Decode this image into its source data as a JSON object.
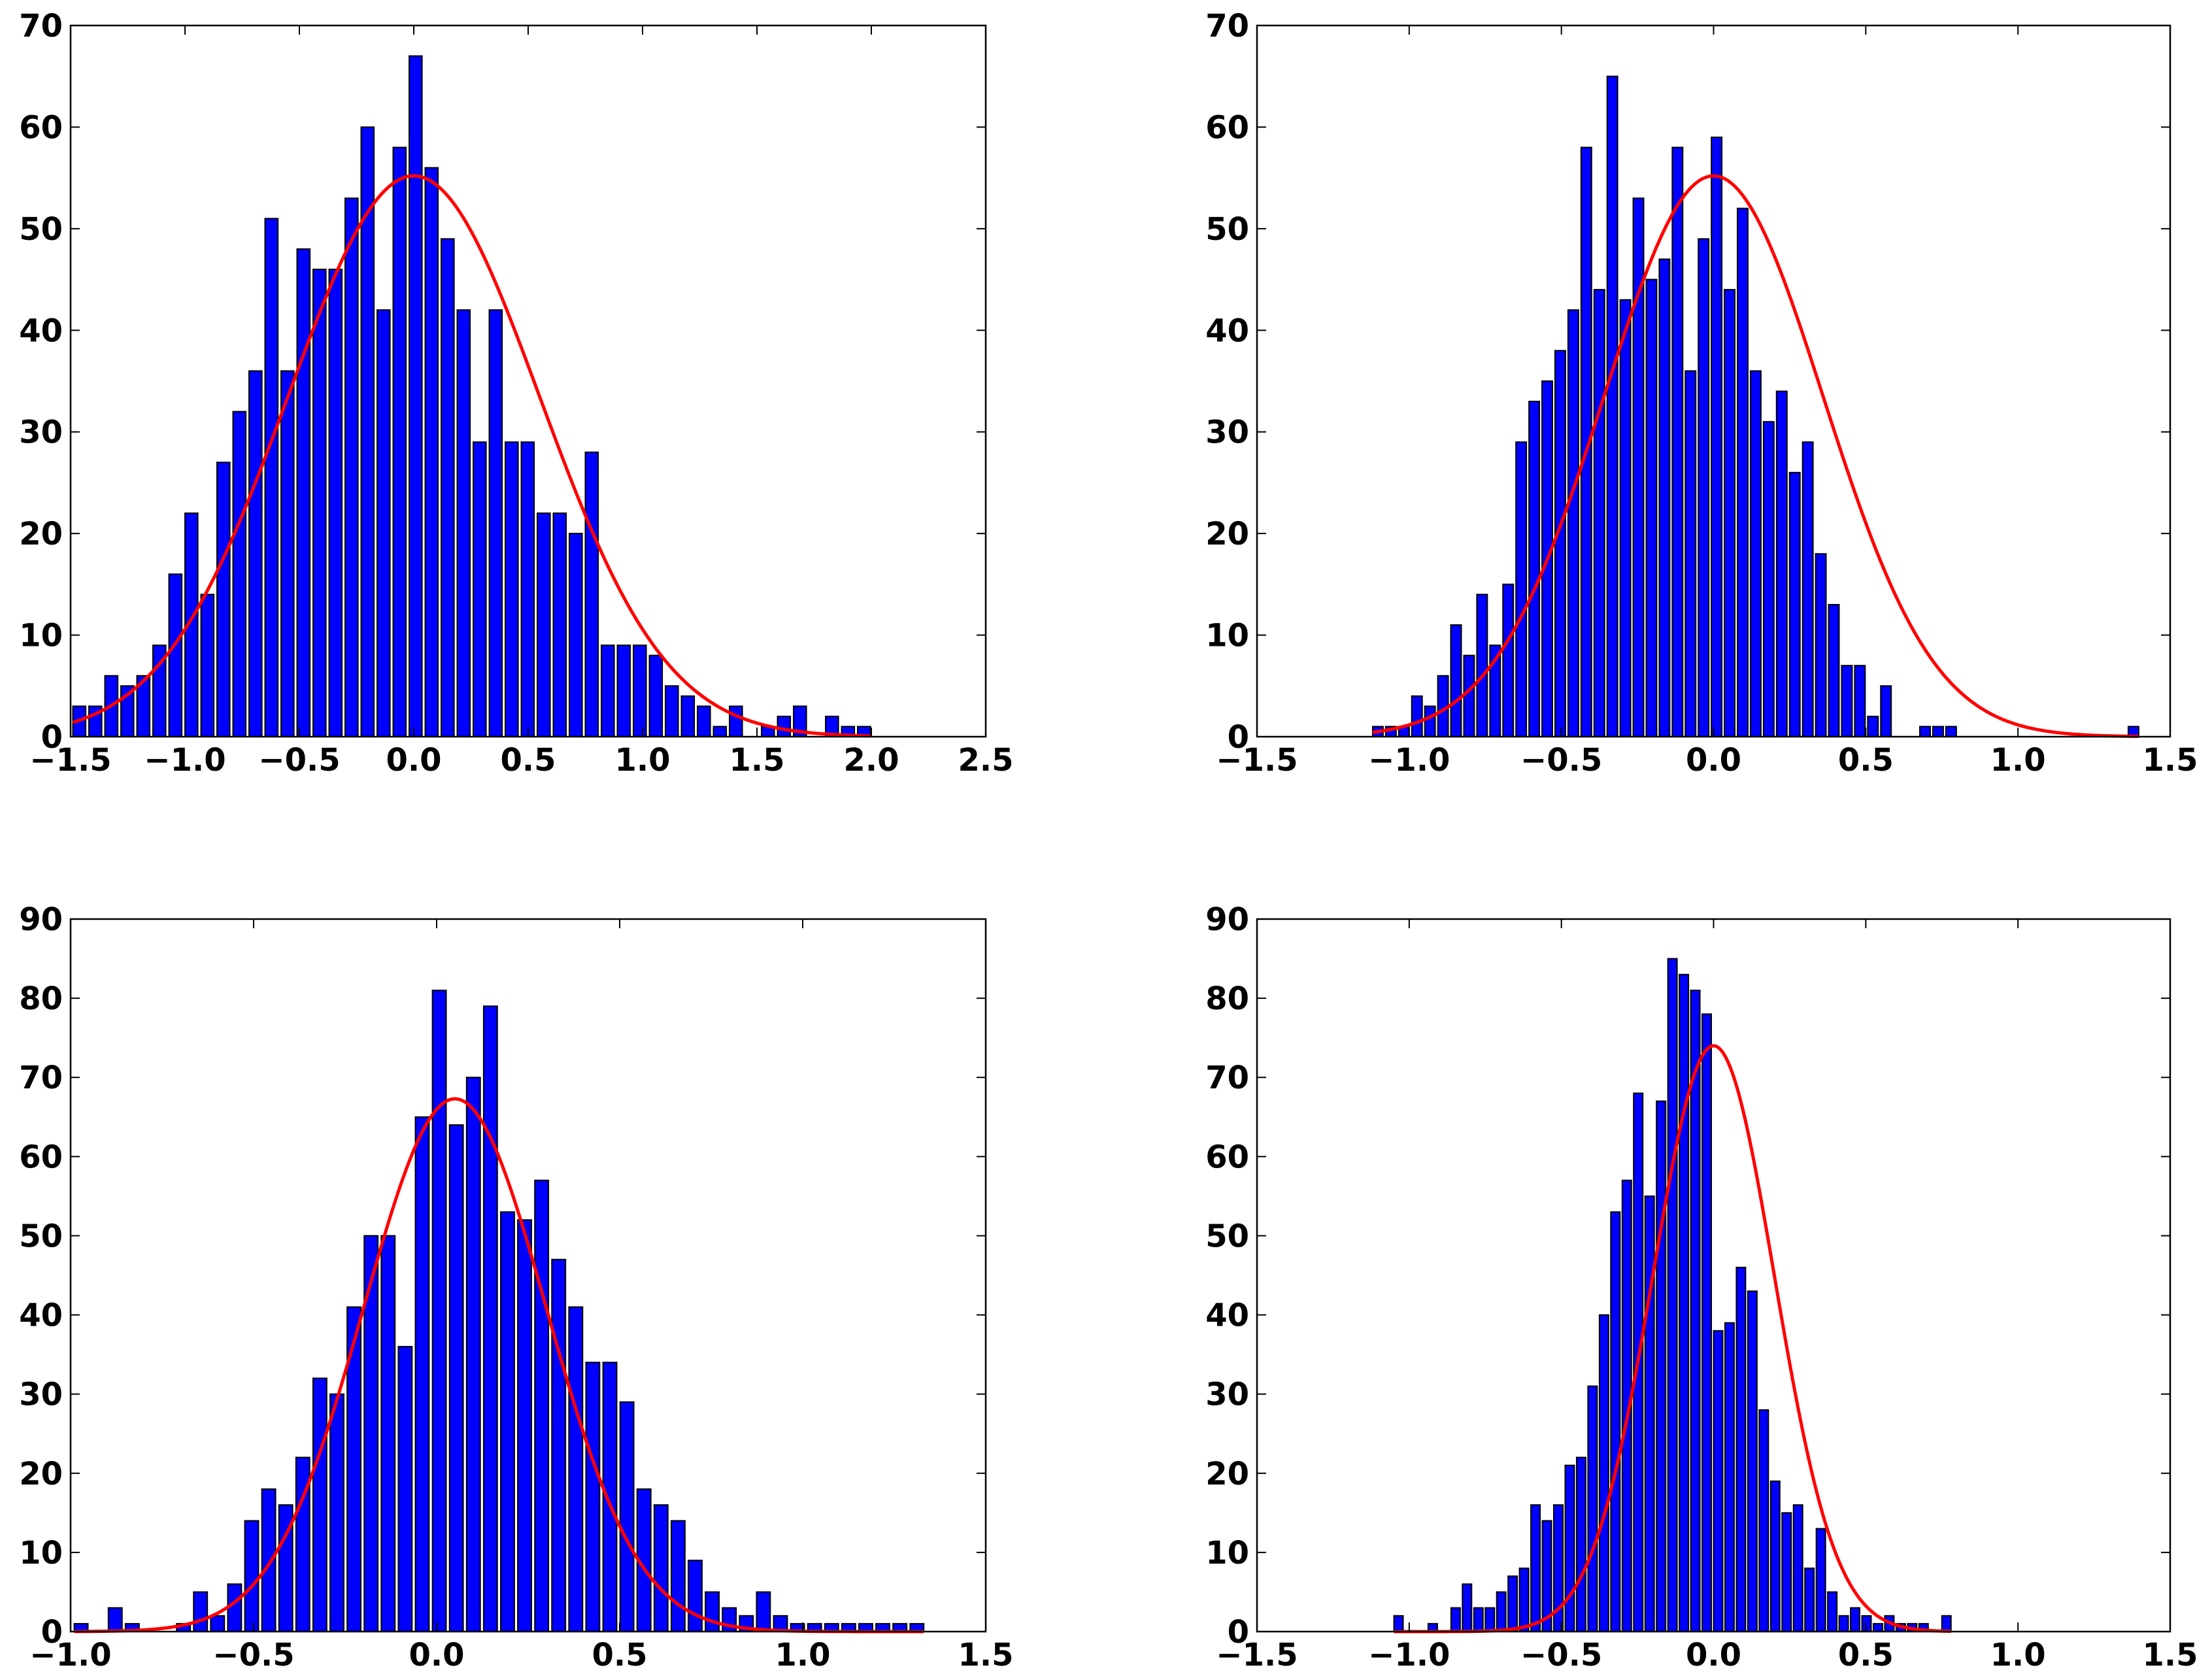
{
  "chart_data": [
    {
      "type": "bar",
      "xlim": [
        -1.5,
        2.5
      ],
      "ylim": [
        0,
        70
      ],
      "xticks": [
        "−1.5",
        "−1.0",
        "−0.5",
        "0.0",
        "0.5",
        "1.0",
        "1.5",
        "2.0",
        "2.5"
      ],
      "yticks": [
        "0",
        "10",
        "20",
        "30",
        "40",
        "50",
        "60",
        "70"
      ],
      "bar_color": "#0000ff",
      "curve_color": "#ff0000",
      "bins": {
        "start": -1.49,
        "width": 0.07,
        "counts": [
          3,
          3,
          6,
          5,
          6,
          9,
          16,
          22,
          14,
          27,
          32,
          36,
          51,
          36,
          48,
          46,
          46,
          53,
          60,
          42,
          58,
          67,
          56,
          49,
          42,
          29,
          42,
          29,
          29,
          22,
          22,
          20,
          28,
          9,
          9,
          9,
          8,
          5,
          4,
          3,
          1,
          3,
          0,
          1,
          2,
          3,
          0,
          2,
          1,
          1
        ]
      },
      "fit": {
        "mean": 0.0,
        "std": 0.55,
        "peak": 55.2
      }
    },
    {
      "type": "bar",
      "xlim": [
        -1.5,
        1.5
      ],
      "ylim": [
        0,
        70
      ],
      "xticks": [
        "−1.5",
        "−1.0",
        "−0.5",
        "0.0",
        "0.5",
        "1.0",
        "1.5"
      ],
      "yticks": [
        "0",
        "10",
        "20",
        "30",
        "40",
        "50",
        "60",
        "70"
      ],
      "bar_color": "#0000ff",
      "curve_color": "#ff0000",
      "bins": {
        "start": -1.12,
        "width": 0.0428,
        "counts": [
          1,
          1,
          1,
          4,
          3,
          6,
          11,
          8,
          14,
          9,
          15,
          29,
          33,
          35,
          38,
          42,
          58,
          44,
          65,
          43,
          53,
          45,
          47,
          58,
          36,
          49,
          59,
          44,
          52,
          36,
          31,
          34,
          26,
          29,
          18,
          13,
          7,
          7,
          2,
          5,
          0,
          0,
          1,
          1,
          1,
          0,
          0,
          0,
          0,
          0,
          0,
          0,
          0,
          0,
          0,
          0,
          0,
          0,
          1
        ]
      },
      "fit": {
        "mean": 0.0,
        "std": 0.36,
        "peak": 55.2
      }
    },
    {
      "type": "bar",
      "xlim": [
        -1.0,
        1.5
      ],
      "ylim": [
        0,
        90
      ],
      "xticks": [
        "−1.0",
        "−0.5",
        "0.0",
        "0.5",
        "1.0",
        "1.5"
      ],
      "yticks": [
        "0",
        "10",
        "20",
        "30",
        "40",
        "50",
        "60",
        "70",
        "80",
        "90"
      ],
      "bar_color": "#0000ff",
      "curve_color": "#ff0000",
      "bins": {
        "start": -0.99,
        "width": 0.0466,
        "counts": [
          1,
          0,
          3,
          1,
          0,
          0,
          1,
          5,
          2,
          6,
          14,
          18,
          16,
          22,
          32,
          30,
          41,
          50,
          50,
          36,
          65,
          81,
          64,
          70,
          79,
          53,
          52,
          57,
          47,
          41,
          34,
          34,
          29,
          18,
          16,
          14,
          9,
          5,
          3,
          2,
          5,
          2,
          1,
          1,
          1,
          1,
          1,
          1,
          1,
          1
        ]
      },
      "fit": {
        "mean": 0.05,
        "std": 0.25,
        "peak": 67.3
      }
    },
    {
      "type": "bar",
      "xlim": [
        -1.5,
        1.5
      ],
      "ylim": [
        0,
        90
      ],
      "xticks": [
        "−1.5",
        "−1.0",
        "−0.5",
        "0.0",
        "0.5",
        "1.0",
        "1.5"
      ],
      "yticks": [
        "0",
        "10",
        "20",
        "30",
        "40",
        "50",
        "60",
        "70",
        "80",
        "90"
      ],
      "bar_color": "#0000ff",
      "curve_color": "#ff0000",
      "bins": {
        "start": -1.05,
        "width": 0.0375,
        "counts": [
          2,
          0,
          0,
          1,
          0,
          3,
          6,
          3,
          3,
          5,
          7,
          8,
          16,
          14,
          16,
          21,
          22,
          31,
          40,
          53,
          57,
          68,
          55,
          67,
          85,
          83,
          81,
          78,
          38,
          39,
          46,
          43,
          28,
          19,
          15,
          16,
          8,
          13,
          5,
          2,
          3,
          2,
          1,
          2,
          1,
          1,
          1,
          0,
          2
        ]
      },
      "fit": {
        "mean": 0.0,
        "std": 0.2,
        "peak": 74.0
      }
    }
  ]
}
